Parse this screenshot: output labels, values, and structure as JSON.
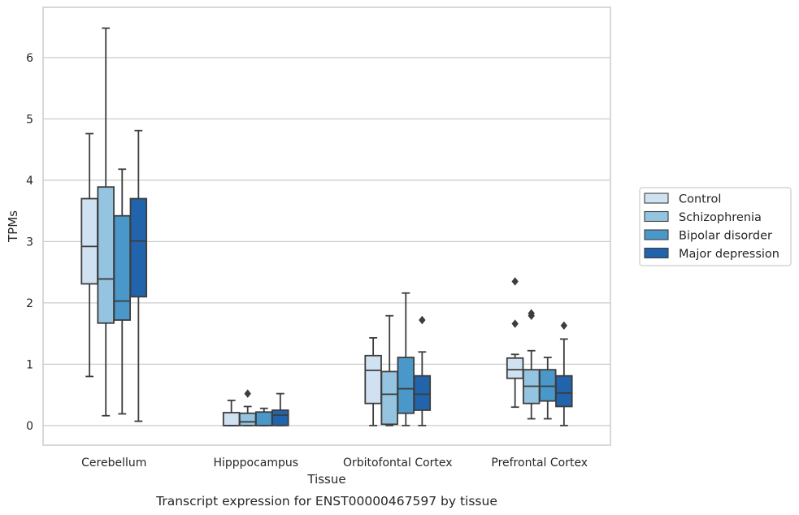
{
  "caption": "Transcript expression for ENST00000467597 by tissue",
  "chart_data": {
    "type": "box",
    "xlabel": "Tissue",
    "ylabel": "TPMs",
    "ylim": [
      -0.32,
      6.82
    ],
    "yticks": [
      0,
      1,
      2,
      3,
      4,
      5,
      6
    ],
    "grid": "horizontal",
    "legend_position": "right",
    "categories": [
      "Cerebellum",
      "Hipppocampus",
      "Orbitofontal Cortex",
      "Prefrontal Cortex"
    ],
    "series": [
      {
        "name": "Control",
        "color": "#d0e1f2",
        "boxes": [
          {
            "whisker_low": 0.8,
            "q1": 2.31,
            "median": 2.92,
            "q3": 3.7,
            "whisker_high": 4.76,
            "outliers": []
          },
          {
            "whisker_low": 0.0,
            "q1": 0.0,
            "median": 0.0,
            "q3": 0.21,
            "whisker_high": 0.41,
            "outliers": []
          },
          {
            "whisker_low": 0.0,
            "q1": 0.36,
            "median": 0.9,
            "q3": 1.14,
            "whisker_high": 1.43,
            "outliers": []
          },
          {
            "whisker_low": 0.3,
            "q1": 0.77,
            "median": 0.91,
            "q3": 1.1,
            "whisker_high": 1.16,
            "outliers": [
              1.66,
              2.35
            ]
          }
        ]
      },
      {
        "name": "Schizophrenia",
        "color": "#94c4df",
        "boxes": [
          {
            "whisker_low": 0.16,
            "q1": 1.67,
            "median": 2.39,
            "q3": 3.89,
            "whisker_high": 6.48,
            "outliers": []
          },
          {
            "whisker_low": 0.0,
            "q1": 0.0,
            "median": 0.06,
            "q3": 0.2,
            "whisker_high": 0.31,
            "outliers": [
              0.52
            ]
          },
          {
            "whisker_low": 0.0,
            "q1": 0.02,
            "median": 0.51,
            "q3": 0.88,
            "whisker_high": 1.79,
            "outliers": []
          },
          {
            "whisker_low": 0.11,
            "q1": 0.36,
            "median": 0.64,
            "q3": 0.91,
            "whisker_high": 1.22,
            "outliers": [
              1.79,
              1.83
            ]
          }
        ]
      },
      {
        "name": "Bipolar disorder",
        "color": "#4a98c9",
        "boxes": [
          {
            "whisker_low": 0.19,
            "q1": 1.72,
            "median": 2.03,
            "q3": 3.42,
            "whisker_high": 4.18,
            "outliers": []
          },
          {
            "whisker_low": 0.0,
            "q1": 0.0,
            "median": 0.0,
            "q3": 0.22,
            "whisker_high": 0.28,
            "outliers": []
          },
          {
            "whisker_low": 0.0,
            "q1": 0.2,
            "median": 0.6,
            "q3": 1.11,
            "whisker_high": 2.16,
            "outliers": []
          },
          {
            "whisker_low": 0.11,
            "q1": 0.4,
            "median": 0.64,
            "q3": 0.91,
            "whisker_high": 1.11,
            "outliers": []
          }
        ]
      },
      {
        "name": "Major depression",
        "color": "#2164ab",
        "boxes": [
          {
            "whisker_low": 0.07,
            "q1": 2.1,
            "median": 3.01,
            "q3": 3.7,
            "whisker_high": 4.81,
            "outliers": []
          },
          {
            "whisker_low": 0.0,
            "q1": 0.0,
            "median": 0.17,
            "q3": 0.25,
            "whisker_high": 0.52,
            "outliers": []
          },
          {
            "whisker_low": 0.0,
            "q1": 0.25,
            "median": 0.51,
            "q3": 0.81,
            "whisker_high": 1.2,
            "outliers": [
              1.72
            ]
          },
          {
            "whisker_low": 0.0,
            "q1": 0.31,
            "median": 0.53,
            "q3": 0.81,
            "whisker_high": 1.41,
            "outliers": [
              1.63
            ]
          }
        ]
      }
    ]
  }
}
